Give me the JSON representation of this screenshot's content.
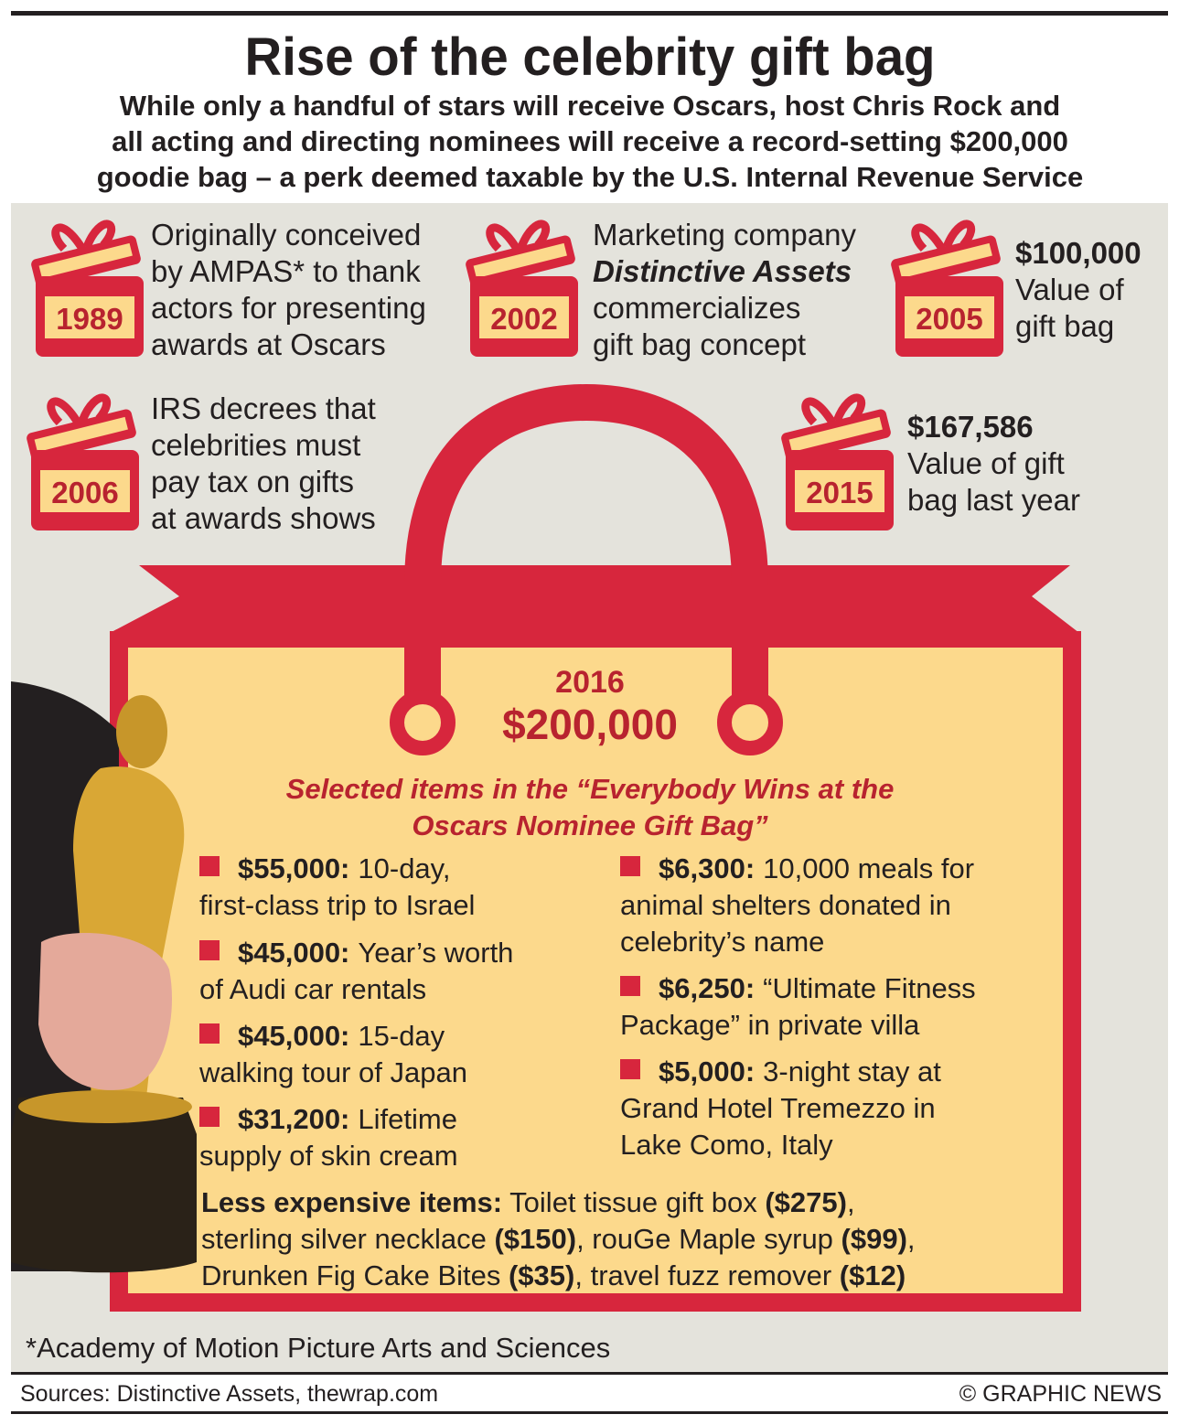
{
  "header": {
    "title": "Rise of the celebrity gift bag",
    "subtitle": [
      "While only a handful of stars will receive Oscars, host Chris Rock and",
      "all acting and directing nominees will receive a record-setting $200,000",
      "goodie bag – a perk deemed taxable by the U.S. Internal Revenue Service"
    ]
  },
  "timeline": [
    {
      "year": "1989",
      "lines": [
        "Originally conceived",
        "by AMPAS* to thank",
        "actors for presenting",
        "awards at Oscars"
      ]
    },
    {
      "year": "2002",
      "lines": [
        "Marketing company",
        "Distinctive Assets",
        "commercializes",
        "gift bag concept"
      ]
    },
    {
      "year": "2005",
      "lines": [
        "$100,000",
        "Value of",
        "gift bag"
      ]
    },
    {
      "year": "2006",
      "lines": [
        "IRS decrees that",
        "celebrities must",
        "pay tax on gifts",
        "at awards shows"
      ]
    },
    {
      "year": "2015",
      "lines": [
        "$167,586",
        "Value of gift",
        "bag last year"
      ]
    }
  ],
  "bag": {
    "year": "2016",
    "value": "$200,000",
    "heading": [
      "Selected items in the “Everybody Wins at the",
      "Oscars Nominee Gift Bag”"
    ],
    "items": [
      {
        "price": "$55,000:",
        "lines": [
          "10-day,",
          "first-class trip to Israel"
        ]
      },
      {
        "price": "$45,000:",
        "lines": [
          "Year’s worth",
          "of Audi car rentals"
        ]
      },
      {
        "price": "$45,000:",
        "lines": [
          "15-day",
          "walking tour of Japan"
        ]
      },
      {
        "price": "$31,200:",
        "lines": [
          "Lifetime",
          "supply of skin cream"
        ]
      },
      {
        "price": "$6,300:",
        "lines": [
          "10,000 meals for",
          "animal shelters donated in",
          "celebrity’s name"
        ]
      },
      {
        "price": "$6,250:",
        "lines": [
          "“Ultimate Fitness",
          "Package” in private villa"
        ]
      },
      {
        "price": "$5,000:",
        "lines": [
          "3-night stay at",
          "Grand Hotel Tremezzo in",
          "Lake Como, Italy"
        ]
      }
    ],
    "less": [
      [
        {
          "text": "Less expensive items:",
          "bold": true
        },
        {
          "text": " Toilet tissue gift box "
        },
        {
          "text": "($275)",
          "bold": true
        },
        {
          "text": ","
        }
      ],
      [
        {
          "text": "sterling silver necklace "
        },
        {
          "text": "($150)",
          "bold": true
        },
        {
          "text": ", rouGe Maple syrup "
        },
        {
          "text": "($99)",
          "bold": true
        },
        {
          "text": ","
        }
      ],
      [
        {
          "text": "Drunken Fig Cake Bites "
        },
        {
          "text": "($35)",
          "bold": true
        },
        {
          "text": ", travel fuzz remover "
        },
        {
          "text": "($12)",
          "bold": true
        }
      ]
    ]
  },
  "footnote": "*Academy of Motion Picture Arts and Sciences",
  "sources": "Sources: Distinctive Assets, thewrap.com",
  "credit": "© GRAPHIC NEWS"
}
